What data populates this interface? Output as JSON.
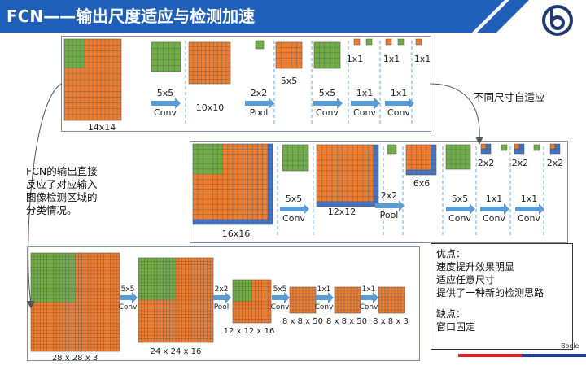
{
  "title": "FCN——输出尺度适应与检测加速",
  "colors": {
    "orange": "#ed7d31",
    "green": "#70ad47",
    "blue": "#4472c4",
    "arrow": "#5b9bd5",
    "title_bg": "#1f5fb8",
    "dash": "#6fa8dc"
  },
  "icons": {
    "logo": "target-logo-icon"
  },
  "side_note": {
    "adapt_label": "不同尺寸自适应",
    "fcn_lines": [
      "FCN的输出直接",
      "反应了对应输入",
      "图像检测区域的",
      "分类情况。"
    ]
  },
  "notes": {
    "pros_title": "优点：",
    "pros": [
      "速度提升效果明显",
      "适应任意尺寸",
      "提供了一种新的检测思路"
    ],
    "cons_title": "缺点：",
    "cons": [
      "窗口固定"
    ]
  },
  "brand": "Boole",
  "panel1": {
    "input_size": "14x14",
    "ops": [
      {
        "kernel": "5x5",
        "op": "Conv"
      },
      {
        "kernel": "2x2",
        "op": "Pool"
      },
      {
        "kernel": "5x5",
        "op": "Conv"
      },
      {
        "kernel": "1x1",
        "op": "Conv"
      },
      {
        "kernel": "1x1",
        "op": "Conv"
      }
    ],
    "feature_sizes": [
      "10x10",
      "5x5",
      "1x1",
      "1x1",
      "1x1"
    ]
  },
  "panel2": {
    "input_size": "16x16",
    "ops": [
      {
        "kernel": "5x5",
        "op": "Conv"
      },
      {
        "kernel": "2x2",
        "op": "Pool"
      },
      {
        "kernel": "5x5",
        "op": "Conv"
      },
      {
        "kernel": "1x1",
        "op": "Conv"
      },
      {
        "kernel": "1x1",
        "op": "Conv"
      }
    ],
    "feature_sizes": [
      "12x12",
      "6x6",
      "2x2",
      "2x2",
      "2x2"
    ]
  },
  "panel3": {
    "input_size": "28 x 28 x 3",
    "ops": [
      {
        "kernel": "5x5",
        "op": "Conv"
      },
      {
        "kernel": "2x2",
        "op": "Pool"
      },
      {
        "kernel": "5x5",
        "op": "Conv"
      },
      {
        "kernel": "1x1",
        "op": "Conv"
      },
      {
        "kernel": "1x1",
        "op": "Conv"
      }
    ],
    "feature_sizes": [
      "24 x 24 x 16",
      "12 x 12 x 16",
      "8 x 8 x 50",
      "8 x 8 x 50",
      "8 x 8 x 3"
    ]
  }
}
